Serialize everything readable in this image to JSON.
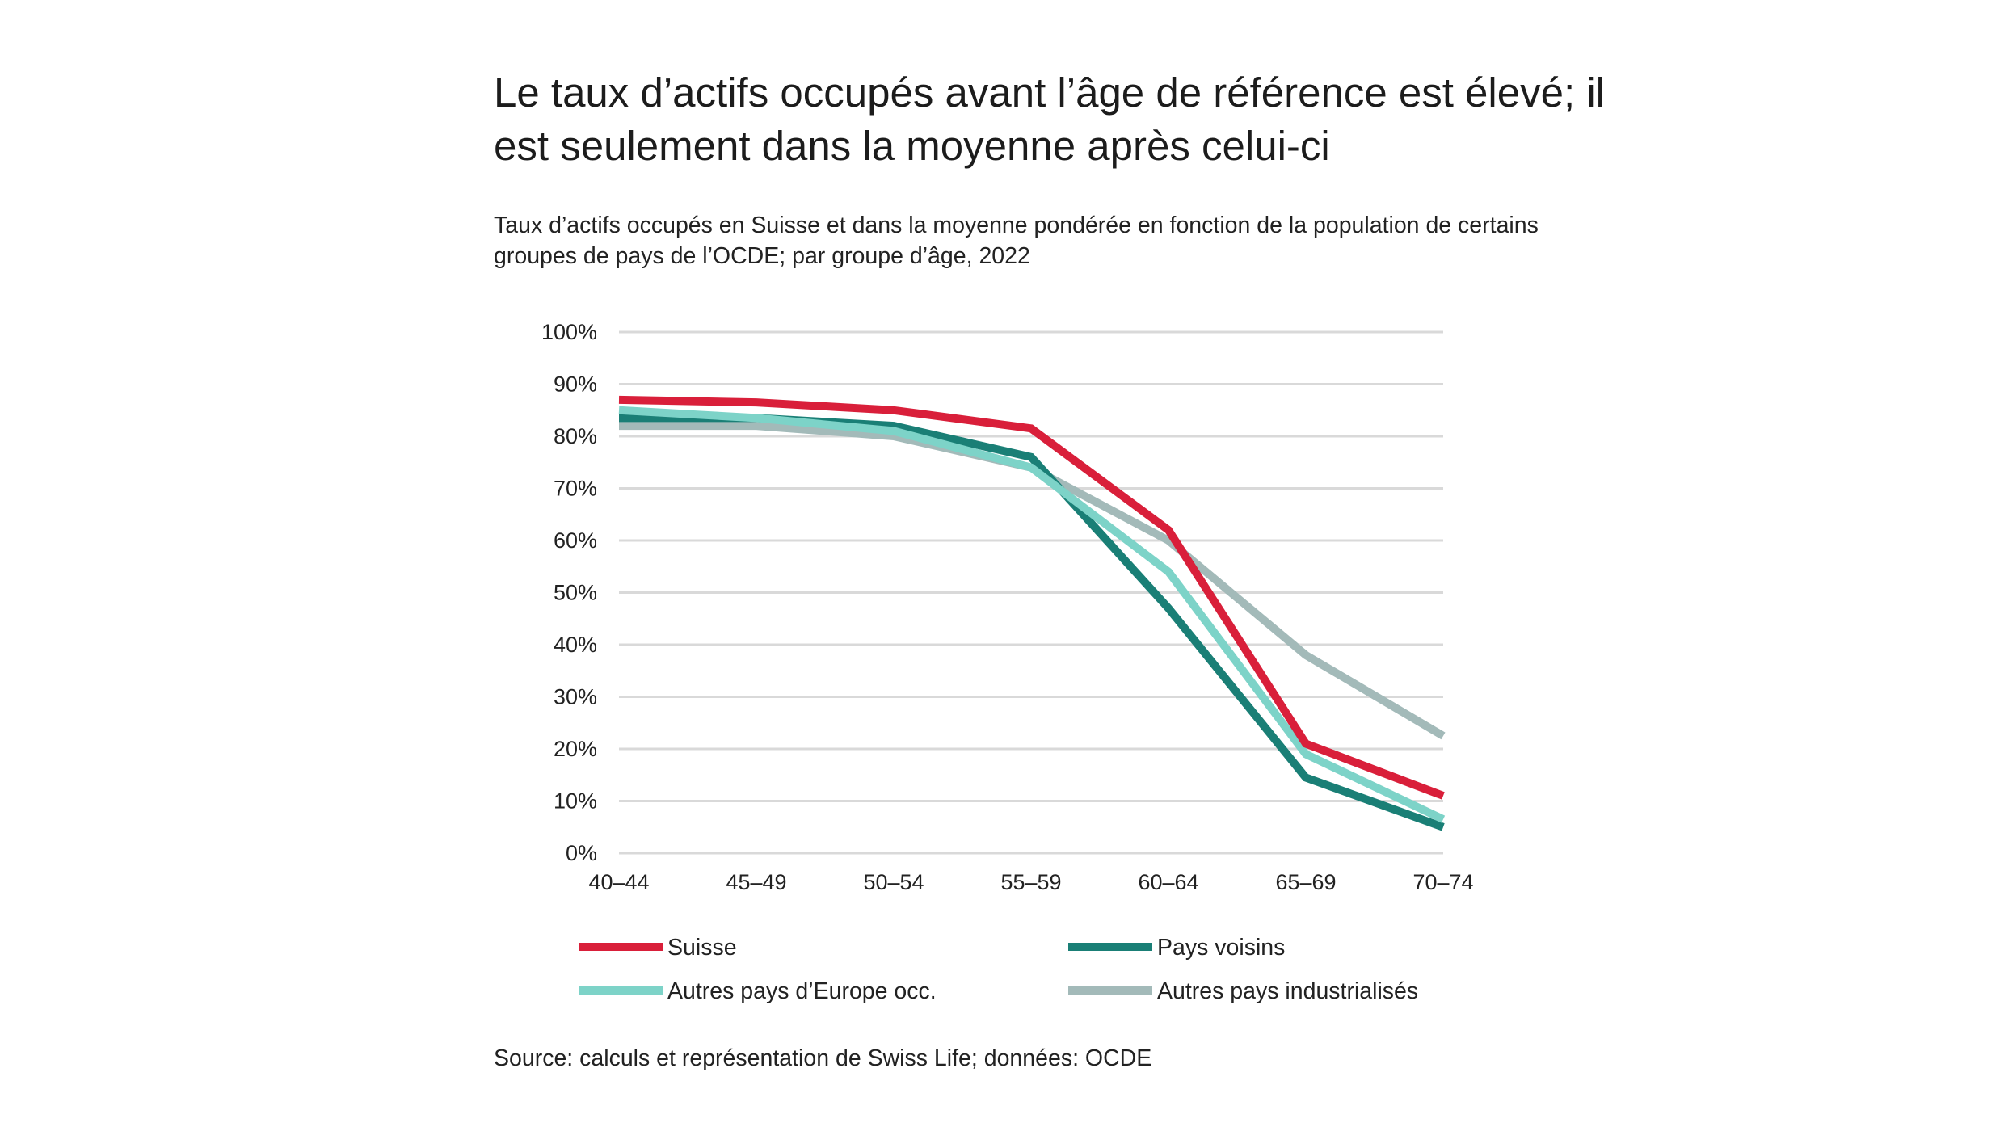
{
  "title": "Le taux d’actifs occupés avant l’âge de référence est élevé; il est seulement dans la moyenne après celui-ci",
  "subtitle": "Taux d’actifs occupés en Suisse et dans la moyenne pondérée en fonction de la population de certains groupes de pays de l’OCDE; par groupe d’âge, 2022",
  "source": "Source: calculs et représentation de Swiss Life; données: OCDE",
  "colors": {
    "suisse": "#d91f3a",
    "pays_voisins": "#1a7f76",
    "autres_europe": "#7dd3c8",
    "autres_industrialises": "#a3bab9",
    "grid": "#d9d9d9"
  },
  "chart_data": {
    "type": "line",
    "categories": [
      "40–44",
      "45–49",
      "50–54",
      "55–59",
      "60–64",
      "65–69",
      "70–74"
    ],
    "ylim": [
      0,
      100
    ],
    "y_ticks": [
      "0%",
      "10%",
      "20%",
      "30%",
      "40%",
      "50%",
      "60%",
      "70%",
      "80%",
      "90%",
      "100%"
    ],
    "grid": true,
    "legend_position": "bottom",
    "series": [
      {
        "name": "Autres pays industrialisés",
        "key": "autres_industrialises",
        "values": [
          82,
          82,
          80,
          74,
          60,
          38,
          22.5
        ]
      },
      {
        "name": "Pays voisins",
        "key": "pays_voisins",
        "values": [
          83.5,
          83.5,
          82,
          76,
          47,
          14.5,
          5
        ]
      },
      {
        "name": "Autres pays d’Europe occ.",
        "key": "autres_europe",
        "values": [
          85,
          83.5,
          81,
          74,
          54,
          19,
          6.5
        ]
      },
      {
        "name": "Suisse",
        "key": "suisse",
        "values": [
          87,
          86.5,
          85,
          81.5,
          62,
          21,
          11
        ]
      }
    ],
    "legend": [
      {
        "name": "Suisse",
        "key": "suisse"
      },
      {
        "name": "Pays voisins",
        "key": "pays_voisins"
      },
      {
        "name": "Autres pays d’Europe occ.",
        "key": "autres_europe"
      },
      {
        "name": "Autres pays industrialisés",
        "key": "autres_industrialises"
      }
    ]
  }
}
